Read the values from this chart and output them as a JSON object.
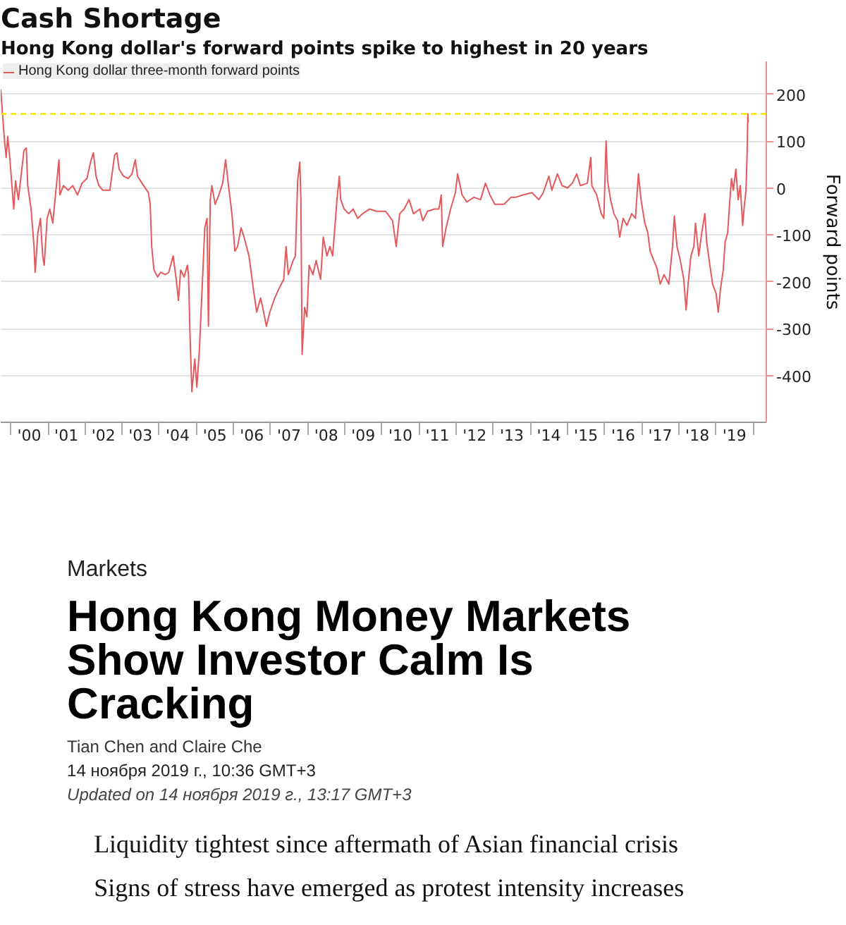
{
  "chart_data": [
    {
      "type": "line",
      "title": "Cash Shortage",
      "subtitle": "Hong Kong dollar's forward points spike to highest in 20 years",
      "ylabel": "Forward points",
      "xlim": [
        "1999-09-24",
        "2020-05-10"
      ],
      "ylim": [
        -500,
        270
      ],
      "xticks": [
        {
          "value": "2000-01-01",
          "label": null
        },
        {
          "value": "2000-07-01",
          "label": "'00"
        },
        {
          "value": "2001-01-01",
          "label": null
        },
        {
          "value": "2001-07-01",
          "label": "'01"
        },
        {
          "value": "2002-01-01",
          "label": null
        },
        {
          "value": "2002-07-01",
          "label": "'02"
        },
        {
          "value": "2003-01-01",
          "label": null
        },
        {
          "value": "2003-07-01",
          "label": "'03"
        },
        {
          "value": "2004-01-01",
          "label": null
        },
        {
          "value": "2004-07-01",
          "label": "'04"
        },
        {
          "value": "2005-01-01",
          "label": null
        },
        {
          "value": "2005-07-01",
          "label": "'05"
        },
        {
          "value": "2006-01-01",
          "label": null
        },
        {
          "value": "2006-07-01",
          "label": "'06"
        },
        {
          "value": "2007-01-01",
          "label": null
        },
        {
          "value": "2007-07-01",
          "label": "'07"
        },
        {
          "value": "2008-01-01",
          "label": null
        },
        {
          "value": "2008-07-01",
          "label": "'08"
        },
        {
          "value": "2009-01-01",
          "label": null
        },
        {
          "value": "2009-07-01",
          "label": "'09"
        },
        {
          "value": "2010-01-01",
          "label": null
        },
        {
          "value": "2010-07-01",
          "label": "'10"
        },
        {
          "value": "2011-01-01",
          "label": null
        },
        {
          "value": "2011-07-01",
          "label": "'11"
        },
        {
          "value": "2012-01-01",
          "label": null
        },
        {
          "value": "2012-07-01",
          "label": "'12"
        },
        {
          "value": "2013-01-01",
          "label": null
        },
        {
          "value": "2013-07-01",
          "label": "'13"
        },
        {
          "value": "2014-01-01",
          "label": null
        },
        {
          "value": "2014-07-01",
          "label": "'14"
        },
        {
          "value": "2015-01-01",
          "label": null
        },
        {
          "value": "2015-07-01",
          "label": "'15"
        },
        {
          "value": "2016-01-01",
          "label": null
        },
        {
          "value": "2016-07-01",
          "label": "'16"
        },
        {
          "value": "2017-01-01",
          "label": null
        },
        {
          "value": "2017-07-01",
          "label": "'17"
        },
        {
          "value": "2018-01-01",
          "label": null
        },
        {
          "value": "2018-07-01",
          "label": "'18"
        },
        {
          "value": "2019-01-01",
          "label": null
        },
        {
          "value": "2019-07-01",
          "label": "'19"
        },
        {
          "value": "2020-01-01",
          "label": null
        }
      ],
      "yticks": [
        200,
        100,
        0,
        -100,
        -200,
        -300,
        -400
      ],
      "grid": "y",
      "legend": "top left",
      "ref_lines": [
        {
          "axis": "y",
          "value": 158,
          "color": "#f2e600",
          "line_style": "dashed"
        }
      ],
      "series": [
        {
          "name": "Hong Kong dollar three-month forward points",
          "color": "#e35a5d",
          "x": [
            "1999-09-24",
            "1999-10-30",
            "1999-11-17",
            "1999-12-02",
            "1999-12-24",
            "2000-01-30",
            "2000-02-17",
            "2000-03-16",
            "2000-04-19",
            "2000-05-10",
            "2000-06-02",
            "2000-06-16",
            "2000-07-19",
            "2000-08-17",
            "2000-08-28",
            "2000-09-24",
            "2000-10-19",
            "2000-11-10",
            "2000-11-25",
            "2000-12-24",
            "2001-01-19",
            "2001-02-17",
            "2001-03-16",
            "2001-04-19",
            "2001-04-29",
            "2001-06-02",
            "2001-07-19",
            "2001-09-02",
            "2001-10-19",
            "2001-12-02",
            "2002-01-19",
            "2002-03-02",
            "2002-03-24",
            "2002-04-19",
            "2002-05-17",
            "2002-06-24",
            "2002-09-02",
            "2002-10-19",
            "2002-11-10",
            "2002-12-02",
            "2003-01-15",
            "2003-03-02",
            "2003-04-08",
            "2003-05-10",
            "2003-06-02",
            "2003-07-15",
            "2003-09-16",
            "2003-10-04",
            "2003-10-19",
            "2003-11-10",
            "2003-12-16",
            "2004-01-15",
            "2004-03-02",
            "2004-04-04",
            "2004-05-17",
            "2004-06-16",
            "2004-07-08",
            "2004-07-30",
            "2004-09-02",
            "2004-10-04",
            "2004-10-15",
            "2004-10-30",
            "2004-11-17",
            "2004-12-16",
            "2005-01-05",
            "2005-01-30",
            "2005-03-02",
            "2005-03-24",
            "2005-04-15",
            "2005-04-29",
            "2005-05-17",
            "2005-06-02",
            "2005-07-04",
            "2005-08-10",
            "2005-09-16",
            "2005-10-15",
            "2005-11-10",
            "2005-12-16",
            "2006-01-15",
            "2006-02-10",
            "2006-03-16",
            "2006-04-15",
            "2006-06-02",
            "2006-07-15",
            "2006-08-17",
            "2006-09-24",
            "2006-10-15",
            "2006-11-21",
            "2006-12-24",
            "2007-02-10",
            "2007-03-24",
            "2007-05-10",
            "2007-06-02",
            "2007-06-24",
            "2007-08-10",
            "2007-09-02",
            "2007-09-24",
            "2007-10-15",
            "2007-10-26",
            "2007-11-07",
            "2007-12-02",
            "2007-12-24",
            "2008-01-15",
            "2008-02-21",
            "2008-03-24",
            "2008-05-07",
            "2008-06-02",
            "2008-07-08",
            "2008-08-07",
            "2008-09-02",
            "2008-09-24",
            "2008-10-15",
            "2008-11-07",
            "2008-11-21",
            "2008-12-24",
            "2009-02-07",
            "2009-03-24",
            "2009-05-07",
            "2009-06-24",
            "2009-09-02",
            "2009-11-07",
            "2010-02-07",
            "2010-04-15",
            "2010-05-21",
            "2010-06-24",
            "2010-08-07",
            "2010-09-24",
            "2010-11-07",
            "2011-01-08",
            "2011-02-07",
            "2011-03-24",
            "2011-06-02",
            "2011-07-15",
            "2011-08-07",
            "2011-08-21",
            "2011-09-24",
            "2011-11-07",
            "2011-12-24",
            "2012-01-15",
            "2012-02-28",
            "2012-04-15",
            "2012-06-24",
            "2012-08-28",
            "2012-10-15",
            "2012-11-28",
            "2013-01-15",
            "2013-04-15",
            "2013-06-24",
            "2013-08-07",
            "2013-10-19",
            "2014-01-15",
            "2014-03-24",
            "2014-05-07",
            "2014-07-01",
            "2014-07-30",
            "2014-09-24",
            "2014-11-07",
            "2015-01-01",
            "2015-02-17",
            "2015-04-01",
            "2015-05-07",
            "2015-07-15",
            "2015-08-17",
            "2015-08-28",
            "2015-10-15",
            "2015-11-28",
            "2015-12-24",
            "2016-01-15",
            "2016-01-30",
            "2016-02-28",
            "2016-04-01",
            "2016-05-07",
            "2016-05-28",
            "2016-07-01",
            "2016-08-07",
            "2016-09-24",
            "2016-10-30",
            "2016-11-28",
            "2016-12-24",
            "2017-01-30",
            "2017-02-28",
            "2017-03-24",
            "2017-04-29",
            "2017-05-28",
            "2017-07-01",
            "2017-08-07",
            "2017-09-24",
            "2017-10-30",
            "2017-11-17",
            "2017-12-13",
            "2018-01-15",
            "2018-02-17",
            "2018-03-13",
            "2018-04-01",
            "2018-04-29",
            "2018-05-28",
            "2018-06-13",
            "2018-07-15",
            "2018-08-14",
            "2018-09-13",
            "2018-10-01",
            "2018-10-26",
            "2018-11-28",
            "2019-01-01",
            "2019-01-23",
            "2019-02-14",
            "2019-03-13",
            "2019-04-01",
            "2019-04-26",
            "2019-05-14",
            "2019-06-02",
            "2019-06-20",
            "2019-07-15",
            "2019-08-07",
            "2019-08-28",
            "2019-09-20",
            "2019-10-08",
            "2019-10-23",
            "2019-11-03",
            "2019-11-10",
            "2019-11-14"
          ],
          "values": [
            210,
            105,
            65,
            110,
            60,
            -45,
            15,
            -25,
            40,
            80,
            85,
            5,
            -45,
            -125,
            -180,
            -95,
            -65,
            -145,
            -165,
            -65,
            -45,
            -75,
            -15,
            60,
            -15,
            5,
            -5,
            5,
            -15,
            10,
            20,
            60,
            75,
            25,
            5,
            -5,
            -5,
            70,
            75,
            40,
            25,
            20,
            30,
            60,
            25,
            10,
            -10,
            -35,
            -125,
            -175,
            -190,
            -180,
            -185,
            -180,
            -145,
            -195,
            -240,
            -175,
            -190,
            -165,
            -185,
            -315,
            -435,
            -365,
            -425,
            -345,
            -195,
            -85,
            -65,
            -295,
            -25,
            5,
            -35,
            -15,
            10,
            60,
            10,
            -55,
            -135,
            -125,
            -85,
            -105,
            -145,
            -215,
            -265,
            -235,
            -255,
            -295,
            -265,
            -235,
            -215,
            -195,
            -125,
            -185,
            -155,
            -145,
            15,
            55,
            -25,
            -355,
            -255,
            -275,
            -165,
            -185,
            -155,
            -195,
            -105,
            -145,
            -125,
            -145,
            -85,
            -25,
            25,
            -25,
            -45,
            -55,
            -45,
            -65,
            -55,
            -45,
            -50,
            -50,
            -70,
            -125,
            -55,
            -45,
            -25,
            -55,
            -45,
            -70,
            -50,
            -45,
            -45,
            -15,
            -125,
            -85,
            -45,
            -10,
            30,
            -15,
            -30,
            -20,
            -25,
            10,
            -15,
            -35,
            -35,
            -20,
            -20,
            -15,
            -10,
            -25,
            -10,
            25,
            -5,
            30,
            5,
            0,
            10,
            30,
            5,
            10,
            65,
            5,
            -15,
            -55,
            -65,
            100,
            15,
            -25,
            -55,
            -70,
            -105,
            -65,
            -80,
            -55,
            -65,
            30,
            -25,
            -75,
            -95,
            -135,
            -155,
            -170,
            -205,
            -185,
            -205,
            -125,
            -60,
            -125,
            -155,
            -195,
            -260,
            -205,
            -145,
            -125,
            -75,
            -145,
            -95,
            -55,
            -115,
            -155,
            -205,
            -225,
            -265,
            -215,
            -175,
            -115,
            -95,
            -35,
            20,
            -5,
            40,
            -25,
            5,
            -80,
            -35,
            -5,
            75,
            158,
            140
          ]
        }
      ]
    },
    {
      "type": "other",
      "title": "Hong Kong Money Markets Show Investor Calm Is Cracking",
      "subtitle": "Markets",
      "annotations": [
        "Tian Chen and Claire Che",
        "14 ноября 2019 г., 10:36 GMT+3",
        "Updated on 14 ноября 2019 г., 13:17 GMT+3",
        "Liquidity tightest since aftermath of Asian financial crisis",
        "Signs of stress have emerged as protest intensity increases"
      ]
    }
  ]
}
